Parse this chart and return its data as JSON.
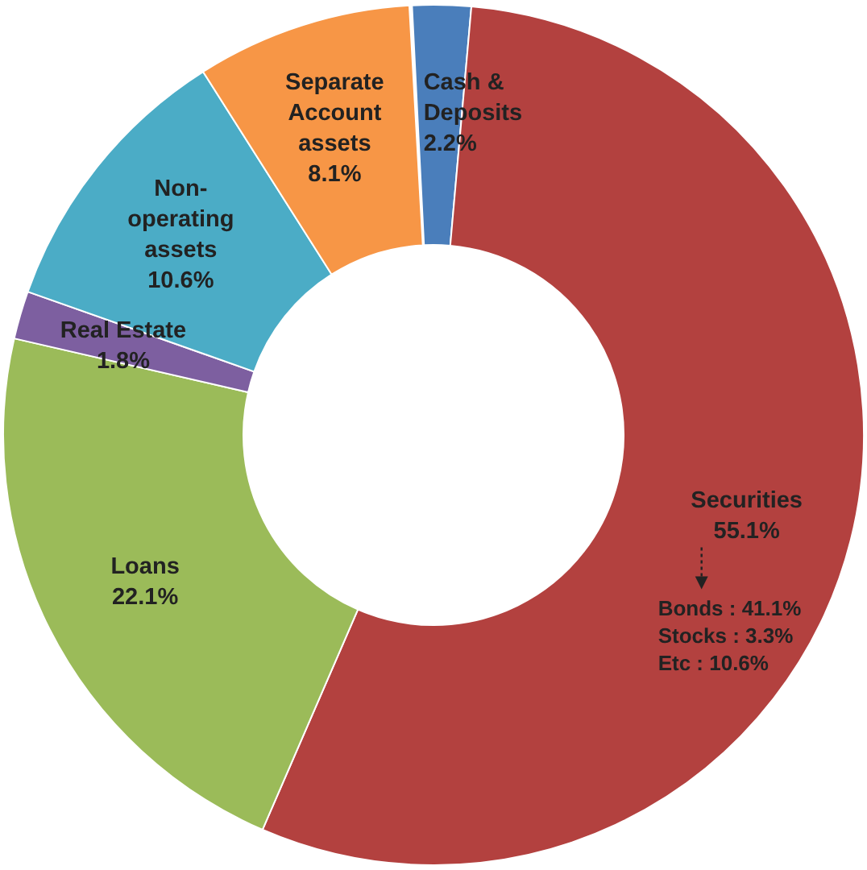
{
  "chart_data": {
    "type": "donut",
    "categories": [
      "Cash &\nDeposits",
      "Securities",
      "Loans",
      "Real Estate",
      "Non-\noperating\nassets",
      "Separate\nAccount\nassets"
    ],
    "values": [
      2.2,
      55.1,
      22.1,
      1.8,
      10.6,
      8.1
    ],
    "colors": [
      "#4a7ebb",
      "#b3413f",
      "#9bbb59",
      "#7d5fa0",
      "#4bacc6",
      "#f79646"
    ],
    "value_labels": [
      "2.2%",
      "55.1%",
      "22.1%",
      "1.8%",
      "10.6%",
      "8.1%"
    ],
    "annotations": [
      "Bonds : 41.1%",
      "Stocks : 3.3%",
      "Etc : 10.6%"
    ]
  }
}
